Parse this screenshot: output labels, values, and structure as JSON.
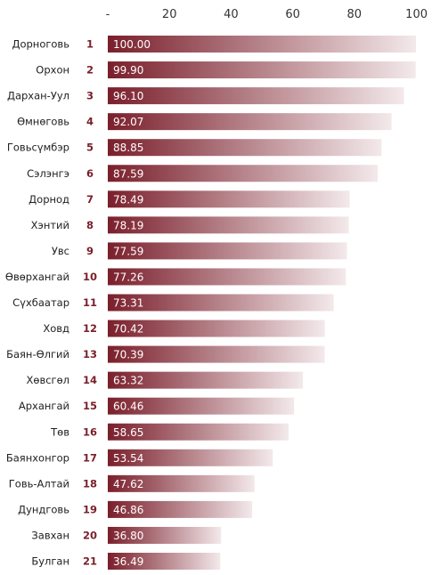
{
  "chart_data": {
    "type": "bar",
    "orientation": "horizontal",
    "title": "",
    "xlabel": "",
    "ylabel": "",
    "xlim": [
      0,
      100
    ],
    "x_ticks": [
      0,
      20,
      40,
      60,
      80,
      100
    ],
    "x_tick_labels": [
      "-",
      "20",
      "40",
      "60",
      "80",
      "100"
    ],
    "grid": false,
    "legend": "none",
    "bar_color_start": "#7a1f2b",
    "bar_color_end": "#f3e9eb",
    "categories": [
      "Дорноговь",
      "Орхон",
      "Дархан-Уул",
      "Өмнөговь",
      "Говьсүмбэр",
      "Сэлэнгэ",
      "Дорнод",
      "Хэнтий",
      "Увс",
      "Өвөрхангай",
      "Сүхбаатар",
      "Ховд",
      "Баян-Өлгий",
      "Хөвсгөл",
      "Архангай",
      "Төв",
      "Баянхонгор",
      "Говь-Алтай",
      "Дундговь",
      "Завхан",
      "Булган"
    ],
    "ranks": [
      "1",
      "2",
      "3",
      "4",
      "5",
      "6",
      "7",
      "8",
      "9",
      "10",
      "11",
      "12",
      "13",
      "14",
      "15",
      "16",
      "17",
      "18",
      "19",
      "20",
      "21"
    ],
    "values": [
      100.0,
      99.9,
      96.1,
      92.07,
      88.85,
      87.59,
      78.49,
      78.19,
      77.59,
      77.26,
      73.31,
      70.42,
      70.39,
      63.32,
      60.46,
      58.65,
      53.54,
      47.62,
      46.86,
      36.8,
      36.49
    ],
    "value_labels": [
      "100.00",
      "99.90",
      "96.10",
      "92.07",
      "88.85",
      "87.59",
      "78.49",
      "78.19",
      "77.59",
      "77.26",
      "73.31",
      "70.42",
      "70.39",
      "63.32",
      "60.46",
      "58.65",
      "53.54",
      "47.62",
      "46.86",
      "36.80",
      "36.49"
    ]
  }
}
